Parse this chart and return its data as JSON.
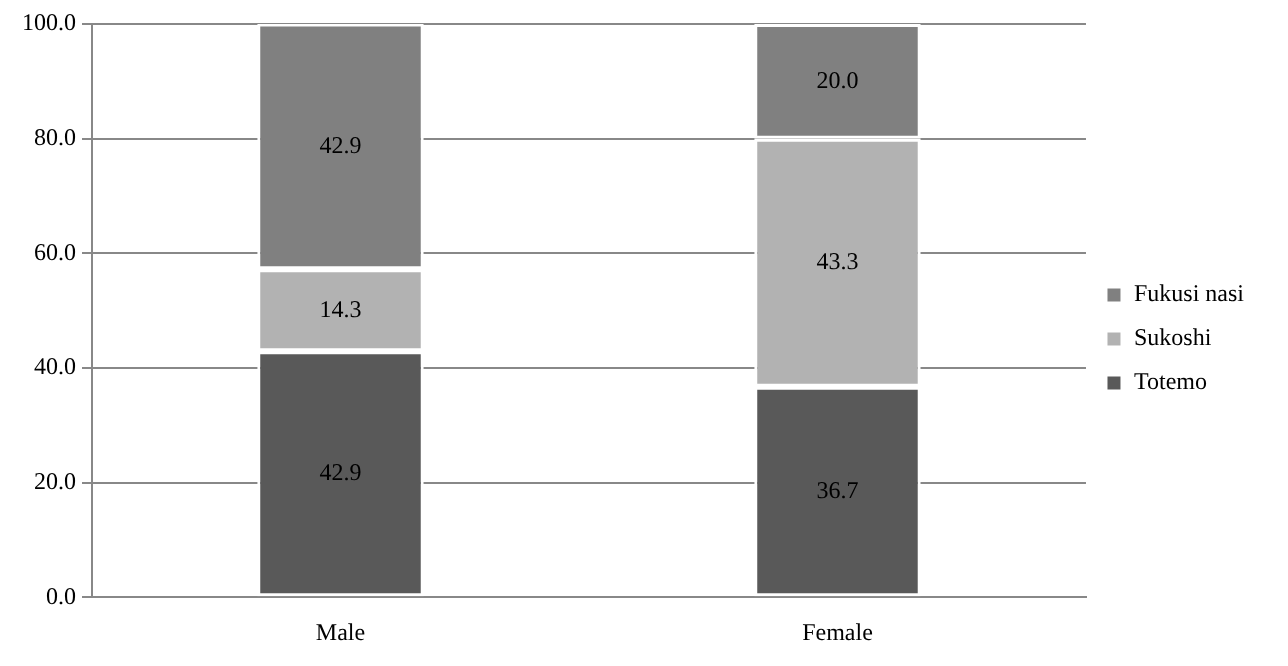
{
  "chart_data": {
    "type": "bar",
    "stacked": true,
    "categories": [
      "Male",
      "Female"
    ],
    "series": [
      {
        "name": "Totemo",
        "color": "#595959",
        "values": [
          42.9,
          36.7
        ],
        "value_labels": [
          "42.9",
          "36.7"
        ]
      },
      {
        "name": "Sukoshi",
        "color": "#b2b2b2",
        "values": [
          14.3,
          43.3
        ],
        "value_labels": [
          "14.3",
          "43.3"
        ]
      },
      {
        "name": "Fukusi nasi",
        "color": "#808080",
        "values": [
          42.9,
          20.0
        ],
        "value_labels": [
          "42.9",
          "20.0"
        ]
      }
    ],
    "ylim": [
      0,
      100
    ],
    "yticks": [
      {
        "value": 0,
        "label": "0.0"
      },
      {
        "value": 20,
        "label": "20.0"
      },
      {
        "value": 40,
        "label": "40.0"
      },
      {
        "value": 60,
        "label": "60.0"
      },
      {
        "value": 80,
        "label": "80.0"
      },
      {
        "value": 100,
        "label": "100.0"
      }
    ],
    "grid": "y",
    "legend": "right"
  }
}
